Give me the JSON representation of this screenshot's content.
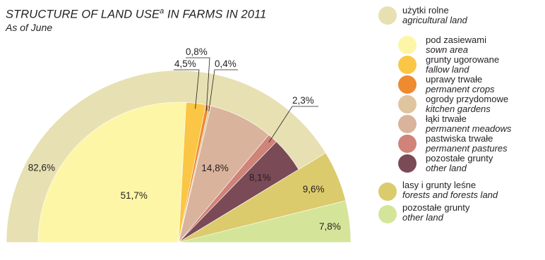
{
  "title": {
    "main": "STRUCTURE OF LAND USE",
    "superscript": "a",
    "suffix": " IN FARMS IN 2011",
    "subtitle": "As of June"
  },
  "chart_data": {
    "type": "pie",
    "title": "STRUCTURE OF LAND USE IN FARMS IN 2011",
    "subtitle": "As of June",
    "layout": "semicircle (upper half), outer ring shows agricultural land",
    "slices": [
      {
        "key": "sown",
        "label_pl": "pod zasiewami",
        "label_en": "sown area",
        "value": 51.7,
        "label": "51,7%",
        "color": "#fdf6a6",
        "level": "inner"
      },
      {
        "key": "fallow",
        "label_pl": "grunty ugorowane",
        "label_en": "fallow land",
        "value": 4.5,
        "label": "4,5%",
        "color": "#fbc645",
        "level": "inner"
      },
      {
        "key": "permcrops",
        "label_pl": "uprawy trwałe",
        "label_en": "permanent crops",
        "value": 0.8,
        "label": "0,8%",
        "color": "#ee8a30",
        "level": "inner"
      },
      {
        "key": "gardens",
        "label_pl": "ogrody przydomowe",
        "label_en": "kitchen gardens",
        "value": 0.4,
        "label": "0,4%",
        "color": "#dfc59e",
        "level": "inner"
      },
      {
        "key": "meadows",
        "label_pl": "łąki trwałe",
        "label_en": "permanent meadows",
        "value": 14.8,
        "label": "14,8%",
        "color": "#d9b39c",
        "level": "inner"
      },
      {
        "key": "pastures",
        "label_pl": "pastwiska trwałe",
        "label_en": "permanent pastures",
        "value": 2.3,
        "label": "2,3%",
        "color": "#d08378",
        "level": "inner"
      },
      {
        "key": "other_agri",
        "label_pl": "pozostałe grunty",
        "label_en": "other land",
        "value": 8.1,
        "label": "8,1%",
        "color": "#7a4a56",
        "level": "inner"
      },
      {
        "key": "forests",
        "label_pl": "lasy i grunty leśne",
        "label_en": "forests and forests land",
        "value": 9.6,
        "label": "9,6%",
        "color": "#dccb6c",
        "level": "outer"
      },
      {
        "key": "other",
        "label_pl": "pozostałe grunty",
        "label_en": "other land",
        "value": 7.8,
        "label": "7,8%",
        "color": "#d4e59a",
        "level": "outer"
      }
    ],
    "group": {
      "key": "agri",
      "label_pl": "użytki rolne",
      "label_en": "agricultural land",
      "value": 82.6,
      "label": "82,6%",
      "color": "#e7e0b2"
    }
  },
  "legend": [
    {
      "key": "agri",
      "pl": "użytki rolne",
      "en": "agricultural land",
      "color": "#e7e0b2"
    },
    {
      "key": "sown",
      "pl": "pod zasiewami",
      "en": "sown area",
      "color": "#fdf6a6"
    },
    {
      "key": "fallow",
      "pl": "grunty ugorowane",
      "en": "fallow land",
      "color": "#fbc645"
    },
    {
      "key": "permcrops",
      "pl": "uprawy trwałe",
      "en": "permanent crops",
      "color": "#ee8a30"
    },
    {
      "key": "gardens",
      "pl": "ogrody przydomowe",
      "en": "kitchen gardens",
      "color": "#dfc59e"
    },
    {
      "key": "meadows",
      "pl": "łąki trwałe",
      "en": "permanent meadows",
      "color": "#d9b39c"
    },
    {
      "key": "pastures",
      "pl": "pastwiska trwałe",
      "en": "permanent pastures",
      "color": "#d08378"
    },
    {
      "key": "other_agri",
      "pl": "pozostałe grunty",
      "en": "other land",
      "color": "#7a4a56"
    },
    {
      "key": "forests",
      "pl": "lasy i grunty leśne",
      "en": "forests and forests land",
      "color": "#dccb6c"
    },
    {
      "key": "other",
      "pl": "pozostałe grunty",
      "en": "other land",
      "color": "#d4e59a"
    }
  ]
}
